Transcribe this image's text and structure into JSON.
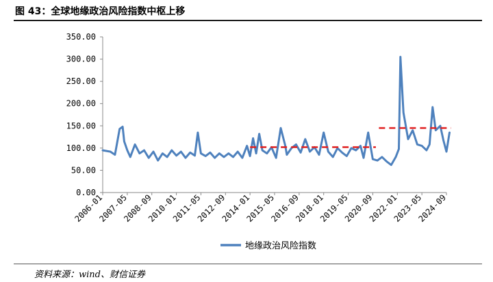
{
  "figure": {
    "title": "图 43：全球地缘政治风险指数中枢上移",
    "source": "资料来源：wind、财信证券"
  },
  "chart_data": {
    "type": "line",
    "title": "图 43：全球地缘政治风险指数中枢上移",
    "xlabel": "",
    "ylabel": "",
    "ylim": [
      0,
      350
    ],
    "y_ticks": [
      "0.00",
      "50.00",
      "100.00",
      "150.00",
      "200.00",
      "250.00",
      "300.00",
      "350.00"
    ],
    "x_ticks": [
      "2006-01",
      "2007-05",
      "2008-09",
      "2010-01",
      "2011-05",
      "2012-09",
      "2014-01",
      "2015-05",
      "2016-09",
      "2018-01",
      "2019-05",
      "2020-09",
      "2022-01",
      "2023-05",
      "2024-09"
    ],
    "grid": false,
    "legend": "bottom-center",
    "colors": {
      "series": "#4e81bd",
      "reference": "#e02020"
    },
    "series": [
      {
        "name": "地缘政治风险指数",
        "x": [
          "2006-01",
          "2006-06",
          "2006-09",
          "2006-12",
          "2007-02",
          "2007-03",
          "2007-05",
          "2007-07",
          "2007-10",
          "2008-01",
          "2008-04",
          "2008-07",
          "2008-10",
          "2009-01",
          "2009-04",
          "2009-07",
          "2009-10",
          "2010-01",
          "2010-04",
          "2010-07",
          "2010-10",
          "2011-01",
          "2011-03",
          "2011-05",
          "2011-08",
          "2011-11",
          "2012-02",
          "2012-05",
          "2012-08",
          "2012-11",
          "2013-02",
          "2013-05",
          "2013-08",
          "2013-11",
          "2014-01",
          "2014-03",
          "2014-05",
          "2014-07",
          "2014-09",
          "2014-12",
          "2015-03",
          "2015-06",
          "2015-09",
          "2015-12",
          "2016-01",
          "2016-04",
          "2016-07",
          "2016-10",
          "2017-01",
          "2017-04",
          "2017-07",
          "2017-10",
          "2018-01",
          "2018-04",
          "2018-07",
          "2018-10",
          "2019-01",
          "2019-04",
          "2019-07",
          "2019-10",
          "2020-01",
          "2020-03",
          "2020-06",
          "2020-09",
          "2020-12",
          "2021-03",
          "2021-06",
          "2021-09",
          "2021-12",
          "2022-02",
          "2022-03",
          "2022-05",
          "2022-08",
          "2022-11",
          "2023-02",
          "2023-05",
          "2023-08",
          "2023-10",
          "2023-12",
          "2024-02",
          "2024-05",
          "2024-07",
          "2024-09",
          "2024-11"
        ],
        "values": [
          95,
          92,
          85,
          143,
          148,
          115,
          95,
          80,
          108,
          88,
          95,
          78,
          92,
          72,
          88,
          80,
          95,
          83,
          92,
          78,
          90,
          83,
          135,
          88,
          82,
          90,
          78,
          88,
          80,
          88,
          80,
          92,
          78,
          105,
          82,
          122,
          88,
          132,
          95,
          88,
          102,
          78,
          145,
          105,
          85,
          100,
          108,
          90,
          120,
          92,
          102,
          85,
          135,
          92,
          80,
          100,
          90,
          82,
          100,
          95,
          105,
          78,
          135,
          75,
          72,
          80,
          70,
          62,
          80,
          98,
          305,
          180,
          120,
          140,
          108,
          105,
          95,
          108,
          192,
          140,
          150,
          118,
          92,
          135
        ]
      },
      {
        "name": "",
        "style": "dashed",
        "x": [
          "2014-01",
          "2020-11"
        ],
        "values": [
          102,
          102
        ]
      },
      {
        "name": "",
        "style": "dashed",
        "x": [
          "2021-01",
          "2024-12"
        ],
        "values": [
          145,
          145
        ]
      }
    ]
  }
}
